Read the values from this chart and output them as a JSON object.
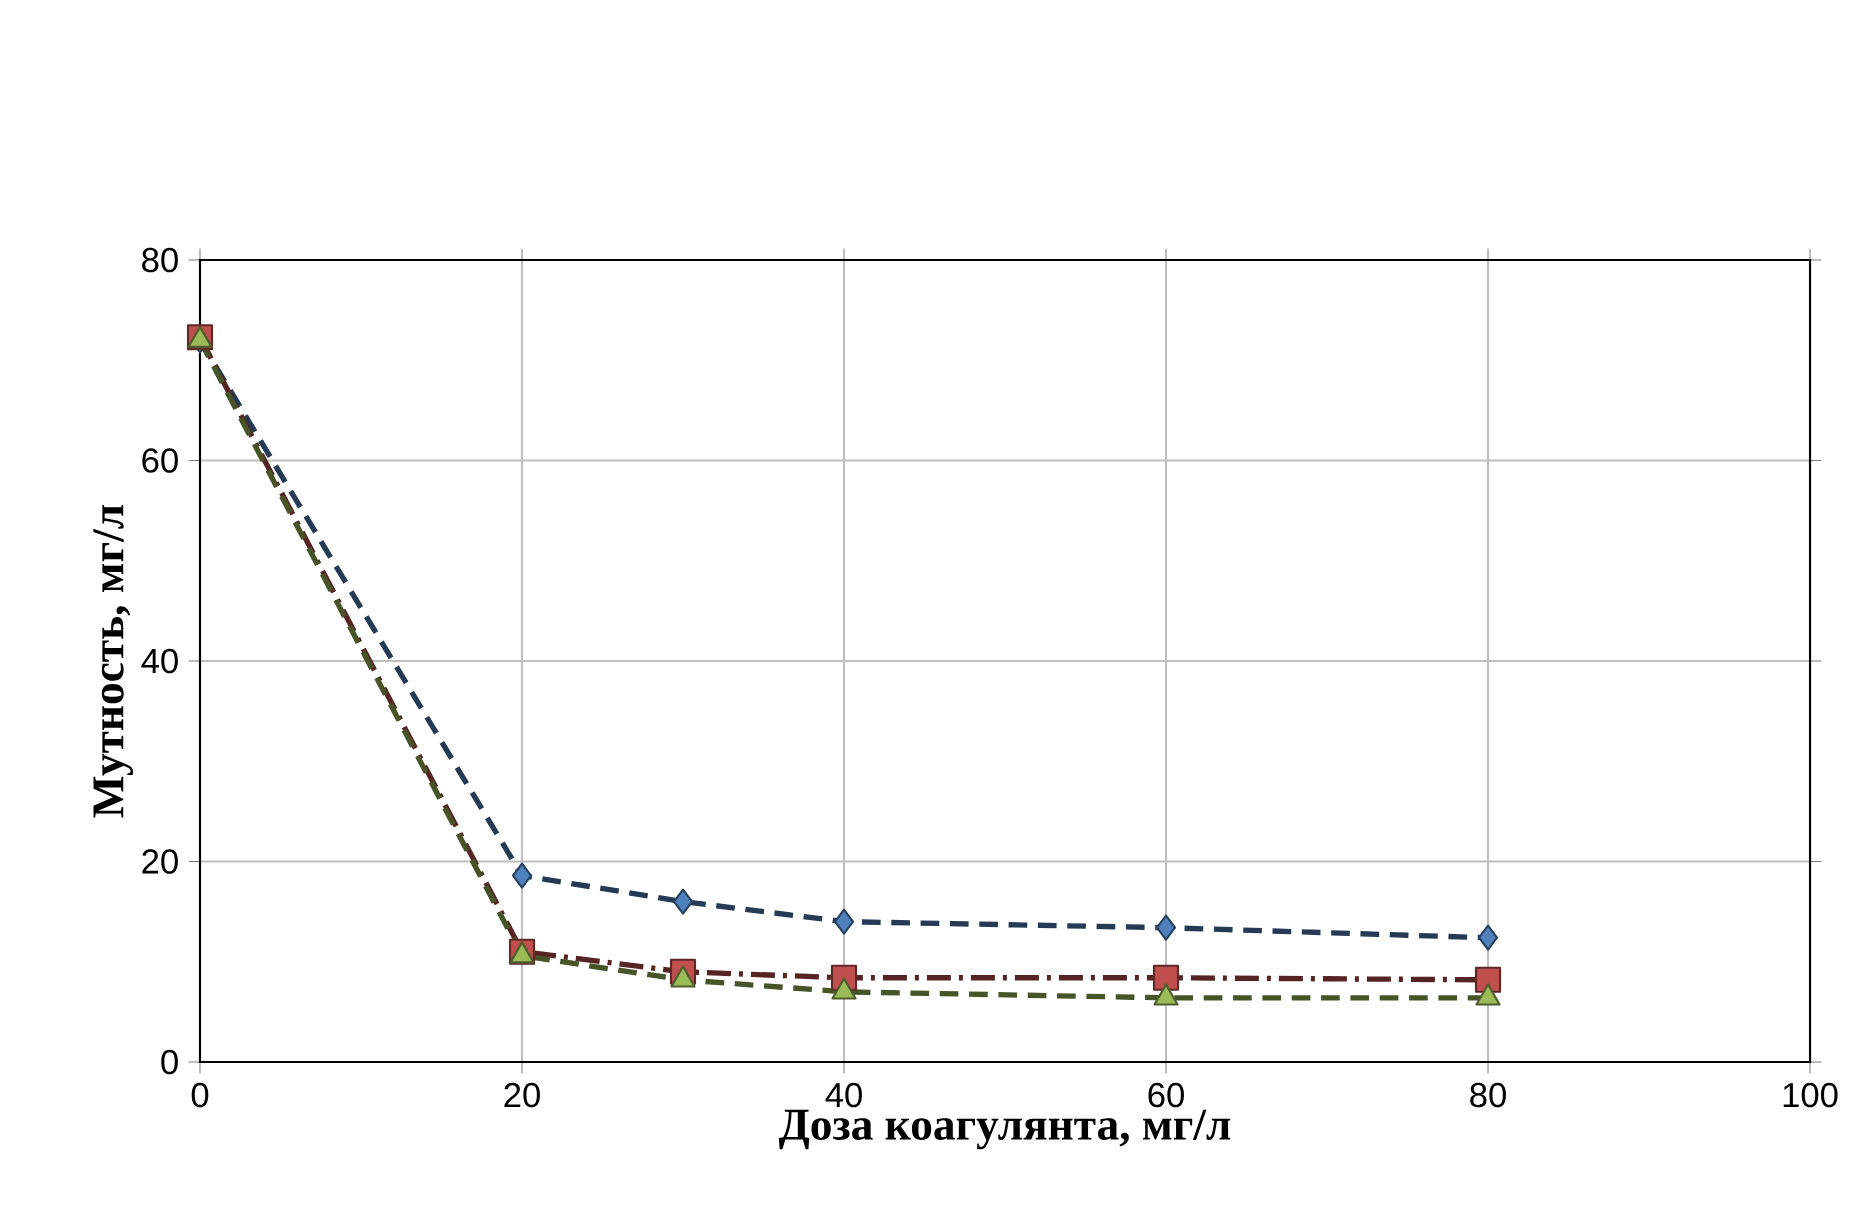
{
  "chart_data": {
    "type": "line",
    "xlabel": "Доза коагулянта, мг/л",
    "ylabel": "Мутность, мг/л",
    "x": [
      0,
      20,
      30,
      40,
      60,
      80
    ],
    "xlim": [
      0,
      100
    ],
    "xticks": [
      0,
      20,
      40,
      60,
      80,
      100
    ],
    "ylim": [
      0,
      80
    ],
    "yticks": [
      0,
      20,
      40,
      60,
      80
    ],
    "grid": true,
    "series": [
      {
        "color": "#4f81bd",
        "marker": "diamond",
        "line_style": "dashed",
        "values": [
          72,
          18.6,
          16,
          14,
          13.4,
          12.4
        ]
      },
      {
        "color": "#c0504d",
        "marker": "square",
        "line_style": "dashdot",
        "values": [
          72.3,
          11,
          9,
          8.4,
          8.4,
          8.2
        ]
      },
      {
        "color": "#9bbb59",
        "marker": "triangle",
        "line_style": "dashed",
        "values": [
          72,
          10.6,
          8.2,
          7,
          6.4,
          6.4
        ]
      }
    ]
  }
}
